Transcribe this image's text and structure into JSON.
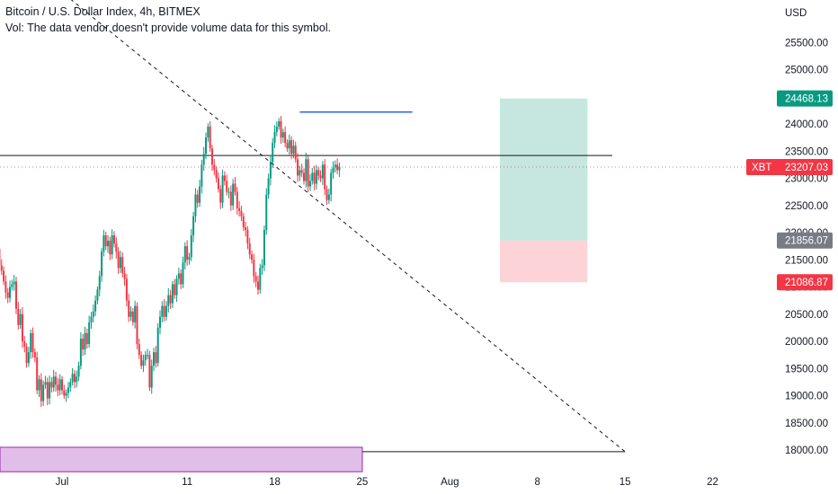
{
  "header": {
    "title": "Bitcoin / U.S. Dollar Index, 4h, BITMEX",
    "volume_note": "Vol: The data vendor doesn't provide volume data for this symbol."
  },
  "chart_data": {
    "type": "candlestick",
    "currency": "USD",
    "symbol_tag": "XBT",
    "ylim": [
      18000,
      25900
    ],
    "xlim": [
      "2022-06-25",
      "2022-08-27"
    ],
    "y_ticks": [
      "25500.00",
      "25000.00",
      "24500.00",
      "24000.00",
      "23500.00",
      "23000.00",
      "22500.00",
      "22000.00",
      "21500.00",
      "21000.00",
      "20500.00",
      "20000.00",
      "19500.00",
      "19000.00",
      "18500.00",
      "18000.00"
    ],
    "x_ticks": [
      {
        "label": "Jul",
        "date": "2022-07-01"
      },
      {
        "label": "11",
        "date": "2022-07-11"
      },
      {
        "label": "18",
        "date": "2022-07-18"
      },
      {
        "label": "25",
        "date": "2022-07-25"
      },
      {
        "label": "Aug",
        "date": "2022-08-01"
      },
      {
        "label": "8",
        "date": "2022-08-08"
      },
      {
        "label": "15",
        "date": "2022-08-15"
      },
      {
        "label": "22",
        "date": "2022-08-22"
      }
    ],
    "price_badges": [
      {
        "label": "24468.13",
        "value": 24468.13,
        "color": "#089981"
      },
      {
        "tag": "XBT",
        "label": "23207.03",
        "value": 23207.03,
        "color": "#f23645"
      },
      {
        "label": "21856.07",
        "value": 21856.07,
        "color": "#787b86"
      },
      {
        "label": "21086.87",
        "value": 21086.87,
        "color": "#f23645"
      }
    ],
    "drawings": {
      "horizontal_line": {
        "value": 23420,
        "color": "#131722"
      },
      "support_line": {
        "value": 17970,
        "color": "#131722"
      },
      "resistance_segment": {
        "value": 24220,
        "x_start": "2022-07-20",
        "x_end": "2022-07-29",
        "color": "#2962ff"
      },
      "trend_line": {
        "start": {
          "date": "2022-06-29",
          "value": 26800
        },
        "end": {
          "date": "2022-08-15",
          "value": 17970
        },
        "style": "dashed"
      },
      "position": {
        "start": "2022-08-05",
        "end": "2022-08-12",
        "entry": 21856.07,
        "target": 24468.13,
        "stop": 21086.87,
        "profit_color": "#b2dfd4",
        "loss_color": "#fbc9cd"
      },
      "demand_zone": {
        "start": "2022-06-25",
        "end": "2022-07-25",
        "top": 18050,
        "bottom": 17600,
        "color": "#e1bee7",
        "border": "#9c27b0"
      }
    },
    "candle_colors": {
      "up": "#089981",
      "down": "#f23645"
    },
    "candles": {
      "start": "2022-06-25",
      "interval_hours": 4,
      "closes": [
        21300,
        21350,
        21250,
        21420,
        21500,
        21700,
        21400,
        21300,
        21100,
        20900,
        20800,
        21000,
        21050,
        21100,
        20600,
        20300,
        20500,
        20000,
        19900,
        19600,
        19800,
        20150,
        19800,
        19700,
        19100,
        19300,
        18900,
        19200,
        19250,
        18950,
        19250,
        19150,
        19350,
        19200,
        19100,
        19300,
        19100,
        19000,
        19050,
        19150,
        19250,
        19400,
        19250,
        19350,
        19550,
        20050,
        19850,
        20150,
        19950,
        20350,
        20450,
        20550,
        20750,
        20950,
        21200,
        21650,
        21950,
        21750,
        21850,
        21600,
        21950,
        21800,
        21650,
        21350,
        21550,
        21250,
        21150,
        20750,
        20450,
        20550,
        20350,
        20650,
        19950,
        19750,
        19550,
        19650,
        19750,
        19750,
        19150,
        19550,
        19800,
        19600,
        20250,
        20450,
        20650,
        20450,
        20650,
        20850,
        20700,
        21050,
        20850,
        21150,
        21250,
        21050,
        21450,
        21750,
        21500,
        21550,
        21950,
        22300,
        22700,
        22550,
        22850,
        23250,
        23450,
        23750,
        23950,
        23550,
        23250,
        23150,
        23000,
        22800,
        22550,
        23050,
        22950,
        22750,
        22750,
        22500,
        22900,
        22750,
        22450,
        22400,
        22300,
        22100,
        22050,
        21800,
        21600,
        21500,
        21200,
        21100,
        20950,
        21350,
        21400,
        22050,
        22700,
        23000,
        23300,
        23650,
        23850,
        23950,
        24050,
        23750,
        23850,
        23650,
        23550,
        23700,
        23450,
        23600,
        23350,
        23050,
        23150,
        23100,
        22950,
        23350,
        22850,
        22950,
        23100,
        22900,
        23150,
        23050,
        23000,
        23250,
        22800,
        22600,
        22700,
        23100,
        23200,
        23250,
        23150,
        23207.03
      ]
    }
  }
}
